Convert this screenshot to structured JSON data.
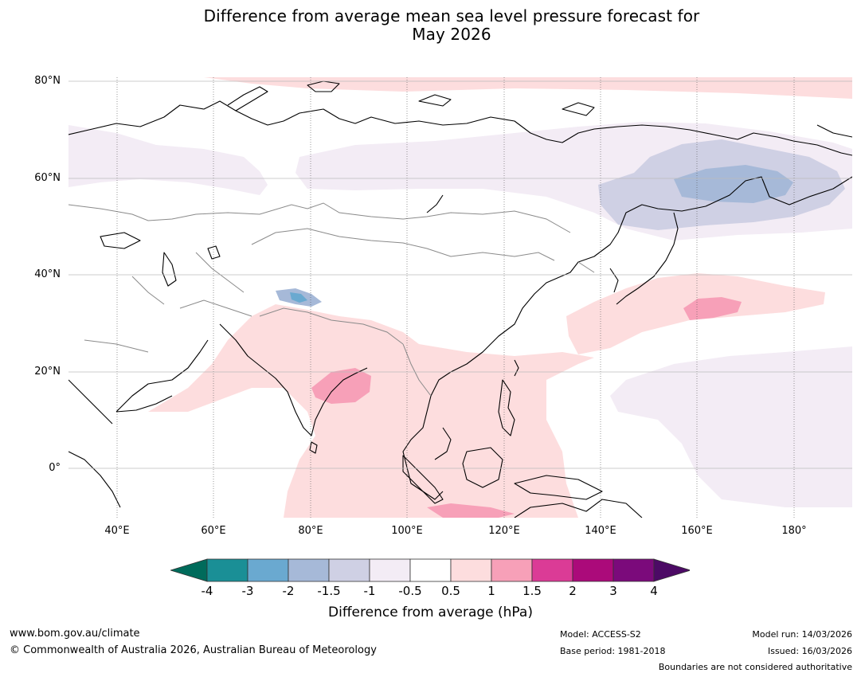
{
  "title_line1": "Difference from average mean sea level pressure forecast for",
  "title_line2": "May 2026",
  "lat_labels": [
    "80°N",
    "60°N",
    "40°N",
    "20°N",
    "0°"
  ],
  "lon_labels": [
    "40°E",
    "60°E",
    "80°E",
    "100°E",
    "120°E",
    "140°E",
    "160°E",
    "180°"
  ],
  "colorbar": {
    "ticks": [
      "-4",
      "-3",
      "-2",
      "-1.5",
      "-1",
      "-0.5",
      "0.5",
      "1",
      "1.5",
      "2",
      "3",
      "4"
    ],
    "colors": [
      "#1a8f96",
      "#6aa9d0",
      "#a6b9d8",
      "#cfd0e4",
      "#f3ecf5",
      "#ffffff",
      "#fdddde",
      "#f7a0b8",
      "#db3b96",
      "#ab0a7a",
      "#7b0a7b"
    ],
    "low_extend_color": "#006b5b",
    "high_extend_color": "#4c0a65",
    "label": "Difference from average (hPa)"
  },
  "footer": {
    "url": "www.bom.gov.au/climate",
    "copyright": "© Commonwealth of Australia 2026, Australian Bureau of Meteorology",
    "model": "Model: ACCESS-S2",
    "base_period": "Base period: 1981-2018",
    "model_run": "Model run: 14/03/2026",
    "issued": "Issued: 16/03/2026",
    "disclaimer": "Boundaries are not considered authoritative"
  }
}
